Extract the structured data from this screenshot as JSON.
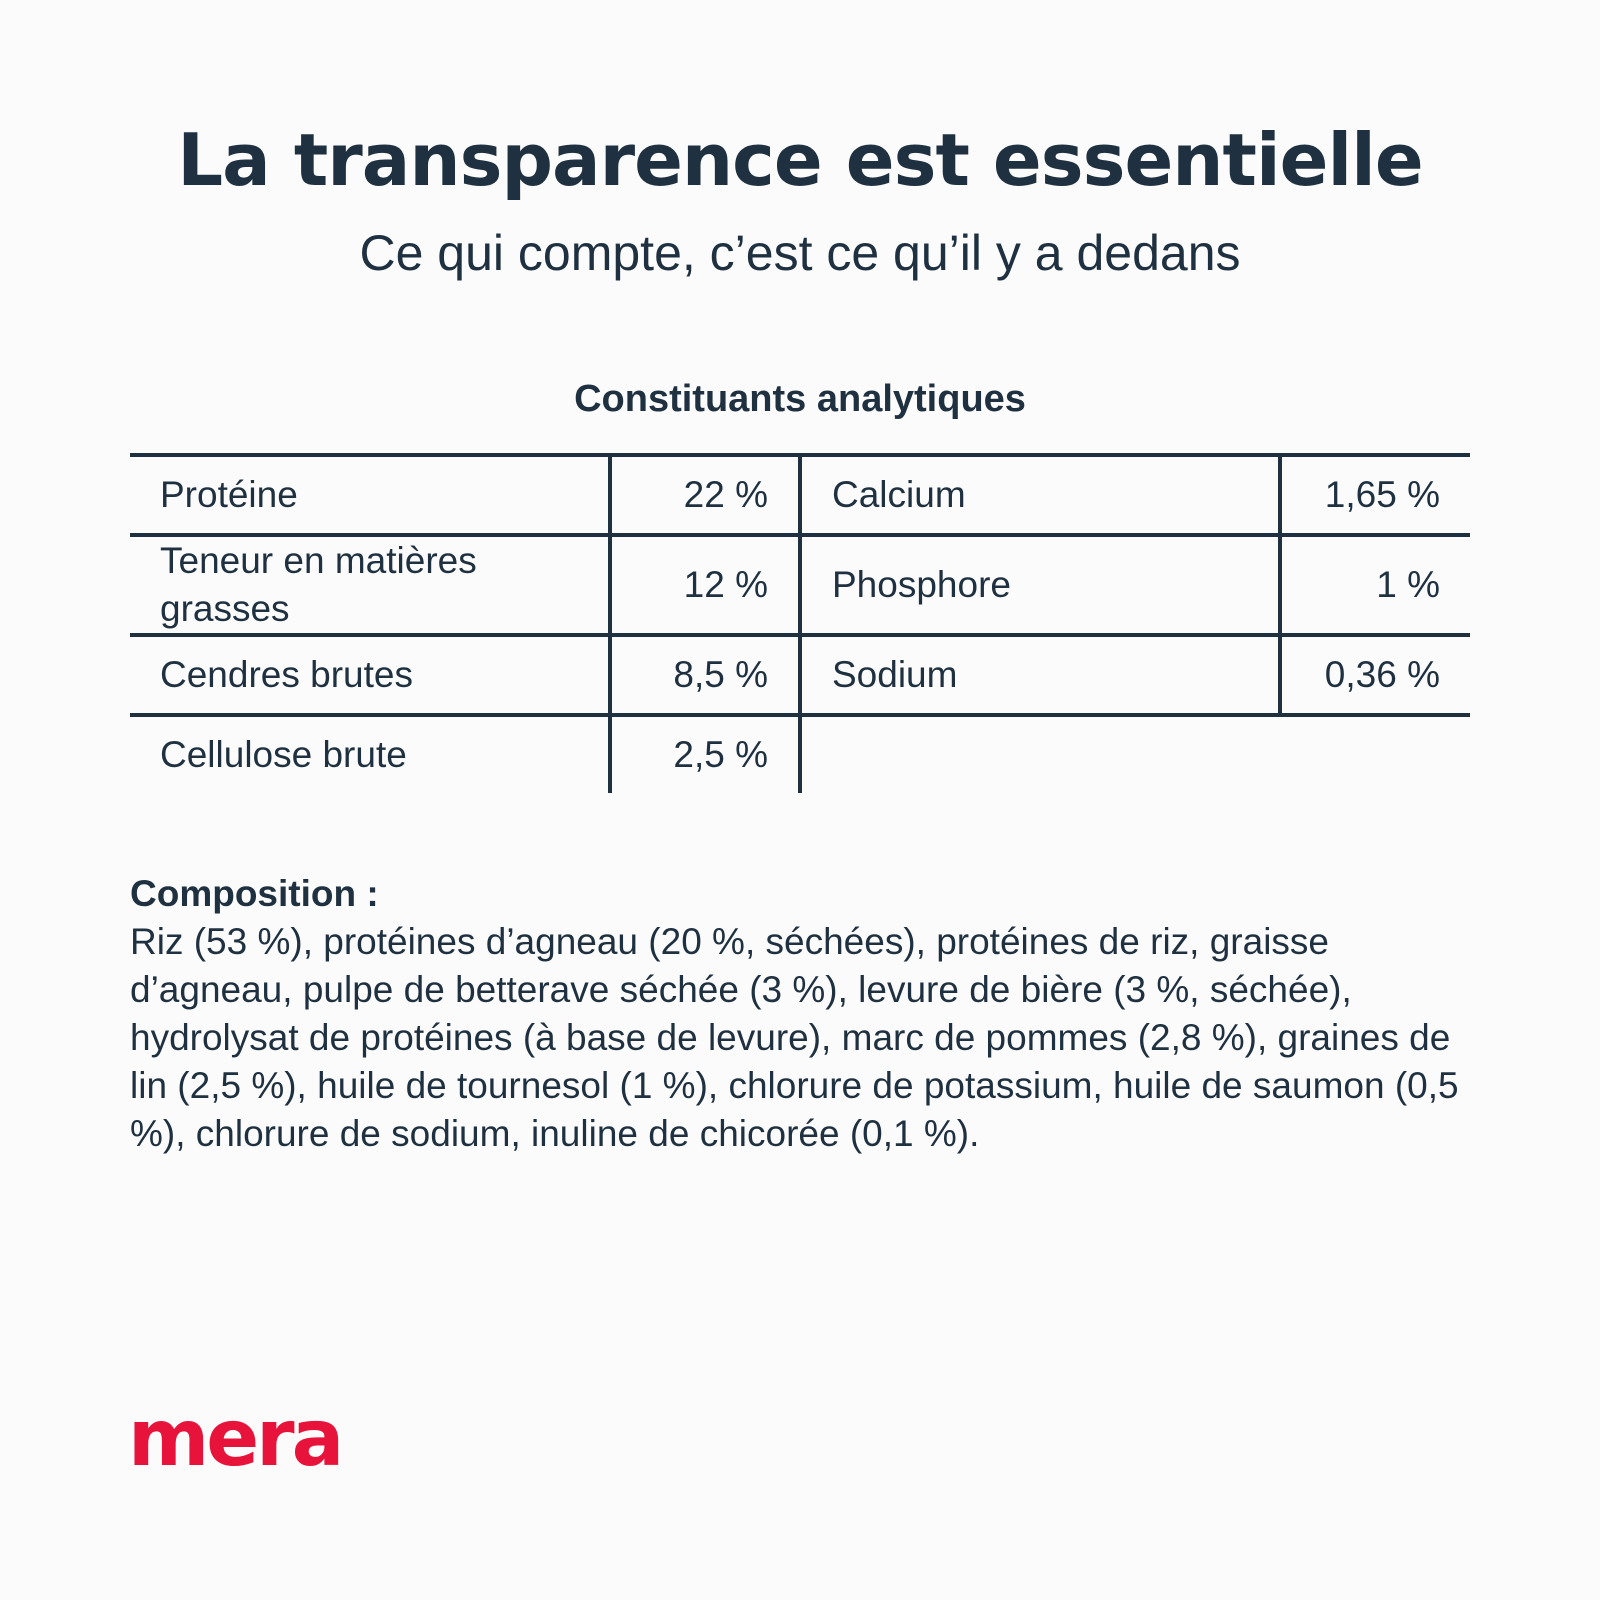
{
  "header": {
    "title": "La transparence est essentielle",
    "subtitle": "Ce qui compte, c’est ce qu’il y a dedans"
  },
  "table": {
    "heading": "Constituants analytiques",
    "rows": [
      {
        "left_name": "Protéine",
        "left_value": "22 %",
        "right_name": "Calcium",
        "right_value": "1,65 %"
      },
      {
        "left_name": "Teneur en matières grasses",
        "left_value": "12 %",
        "right_name": "Phosphore",
        "right_value": "1 %"
      },
      {
        "left_name": "Cendres brutes",
        "left_value": "8,5 %",
        "right_name": "Sodium",
        "right_value": "0,36 %"
      },
      {
        "left_name": "Cellulose brute",
        "left_value": "2,5 %",
        "right_name": "",
        "right_value": ""
      }
    ]
  },
  "composition": {
    "title": "Composition :",
    "text": "Riz (53 %), protéines d’agneau (20 %, séchées), protéines de riz, graisse d’agneau, pulpe de betterave séchée (3 %), levure de bière (3 %, séchée), hydrolysat de protéines (à base de levure), marc de pommes (2,8 %), graines de lin (2,5 %), huile de tournesol (1 %), chlorure de potassium, huile de saumon (0,5 %), chlorure de sodium, inuline de chicorée (0,1 %)."
  },
  "brand": {
    "logo_text": "mera",
    "logo_color": "#e8133a",
    "text_color": "#1f3140",
    "background": "#fbfbfb"
  }
}
